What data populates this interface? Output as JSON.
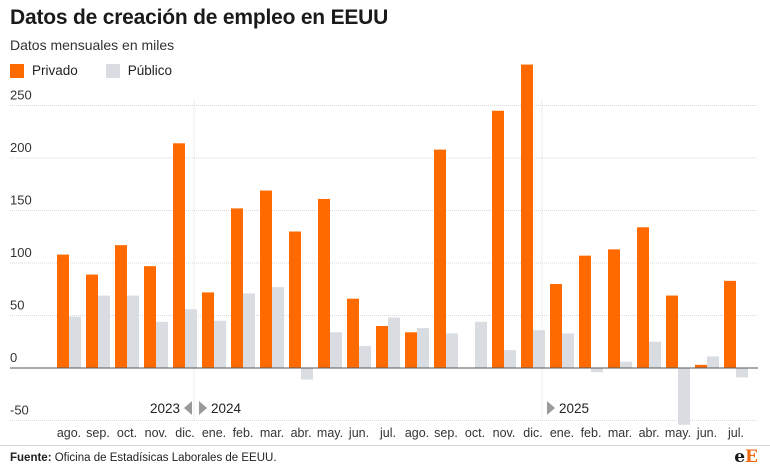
{
  "header": {
    "title": "Datos de creación de empleo en EEUU",
    "subtitle": "Datos mensuales en miles"
  },
  "legend": {
    "private_label": "Privado",
    "public_label": "Público"
  },
  "colors": {
    "private": "#ff6a00",
    "public": "#d9dde2",
    "grid": "#d9d9d9",
    "zero_line": "#555555",
    "year_marker": "#9a9a9a"
  },
  "footer": {
    "source_label": "Fuente:",
    "source_text": " Oficina de Estadísicas Laborales de EEUU.",
    "logo_e1": "e",
    "logo_e2": "E"
  },
  "chart_data": {
    "type": "bar",
    "categories": [
      "ago.",
      "sep.",
      "oct.",
      "nov.",
      "dic.",
      "ene.",
      "feb.",
      "mar.",
      "abr.",
      "may.",
      "jun.",
      "jul.",
      "ago.",
      "sep.",
      "oct.",
      "nov.",
      "dic.",
      "ene.",
      "feb.",
      "mar.",
      "abr.",
      "may.",
      "jun.",
      "jul."
    ],
    "series": [
      {
        "name": "Privado",
        "values": [
          108,
          89,
          117,
          97,
          214,
          72,
          152,
          169,
          130,
          161,
          66,
          40,
          34,
          208,
          0,
          245,
          289,
          80,
          107,
          113,
          134,
          69,
          3,
          83
        ]
      },
      {
        "name": "Público",
        "values": [
          49,
          69,
          69,
          44,
          56,
          45,
          71,
          77,
          -11,
          34,
          21,
          48,
          38,
          33,
          44,
          17,
          36,
          33,
          -4,
          6,
          25,
          -54,
          11,
          -9
        ]
      }
    ],
    "ylim": [
      -50,
      290
    ],
    "yticks": [
      -50,
      0,
      50,
      100,
      150,
      200,
      250
    ],
    "year_markers": [
      {
        "label": "2023",
        "index": 4,
        "direction": "left"
      },
      {
        "label": "2024",
        "index": 5,
        "direction": "right"
      },
      {
        "label": "2025",
        "index": 17,
        "direction": "right"
      }
    ],
    "grid": true
  }
}
